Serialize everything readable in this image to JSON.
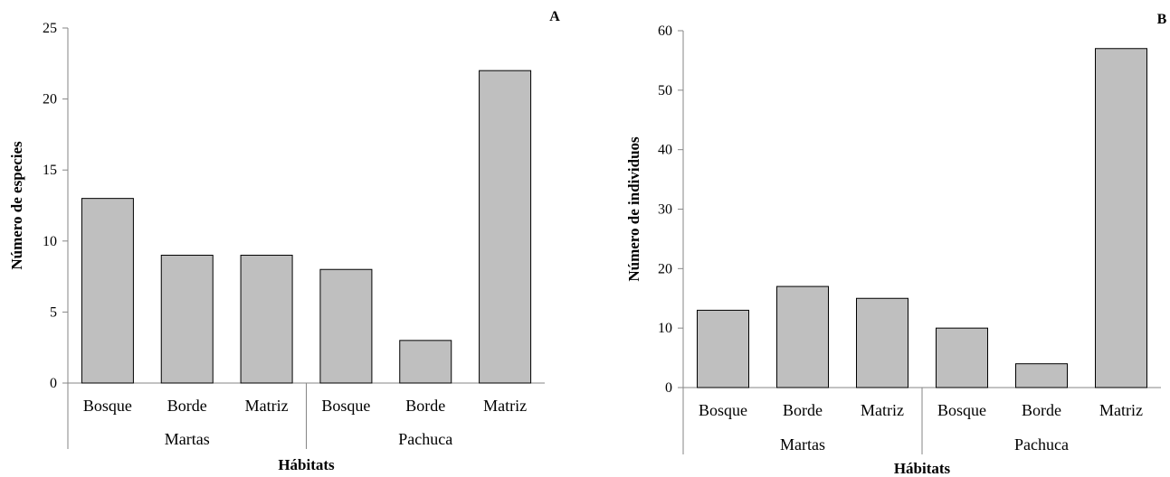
{
  "chart_data": [
    {
      "type": "bar",
      "panel_label": "A",
      "title": "",
      "xlabel": "Hábitats",
      "ylabel": "Número de especies",
      "ylim": [
        0,
        25
      ],
      "yticks": [
        0,
        5,
        10,
        15,
        20,
        25
      ],
      "categories": [
        "Bosque",
        "Borde",
        "Matriz",
        "Bosque",
        "Borde",
        "Matriz"
      ],
      "groups": [
        {
          "name": "Martas",
          "categories": [
            "Bosque",
            "Borde",
            "Matriz"
          ]
        },
        {
          "name": "Pachuca",
          "categories": [
            "Bosque",
            "Borde",
            "Matriz"
          ]
        }
      ],
      "values": [
        13,
        9,
        9,
        8,
        3,
        22
      ],
      "grid": false,
      "legend": "none"
    },
    {
      "type": "bar",
      "panel_label": "B",
      "title": "",
      "xlabel": "Hábitats",
      "ylabel": "Número de individuos",
      "ylim": [
        0,
        60
      ],
      "yticks": [
        0,
        10,
        20,
        30,
        40,
        50,
        60
      ],
      "categories": [
        "Bosque",
        "Borde",
        "Matriz",
        "Bosque",
        "Borde",
        "Matriz"
      ],
      "groups": [
        {
          "name": "Martas",
          "categories": [
            "Bosque",
            "Borde",
            "Matriz"
          ]
        },
        {
          "name": "Pachuca",
          "categories": [
            "Bosque",
            "Borde",
            "Matriz"
          ]
        }
      ],
      "values": [
        13,
        17,
        15,
        10,
        4,
        57
      ],
      "grid": false,
      "legend": "none"
    }
  ],
  "colors": {
    "bar_fill": "#bfbfbf",
    "bar_stroke": "#000000",
    "axis": "#868686"
  }
}
